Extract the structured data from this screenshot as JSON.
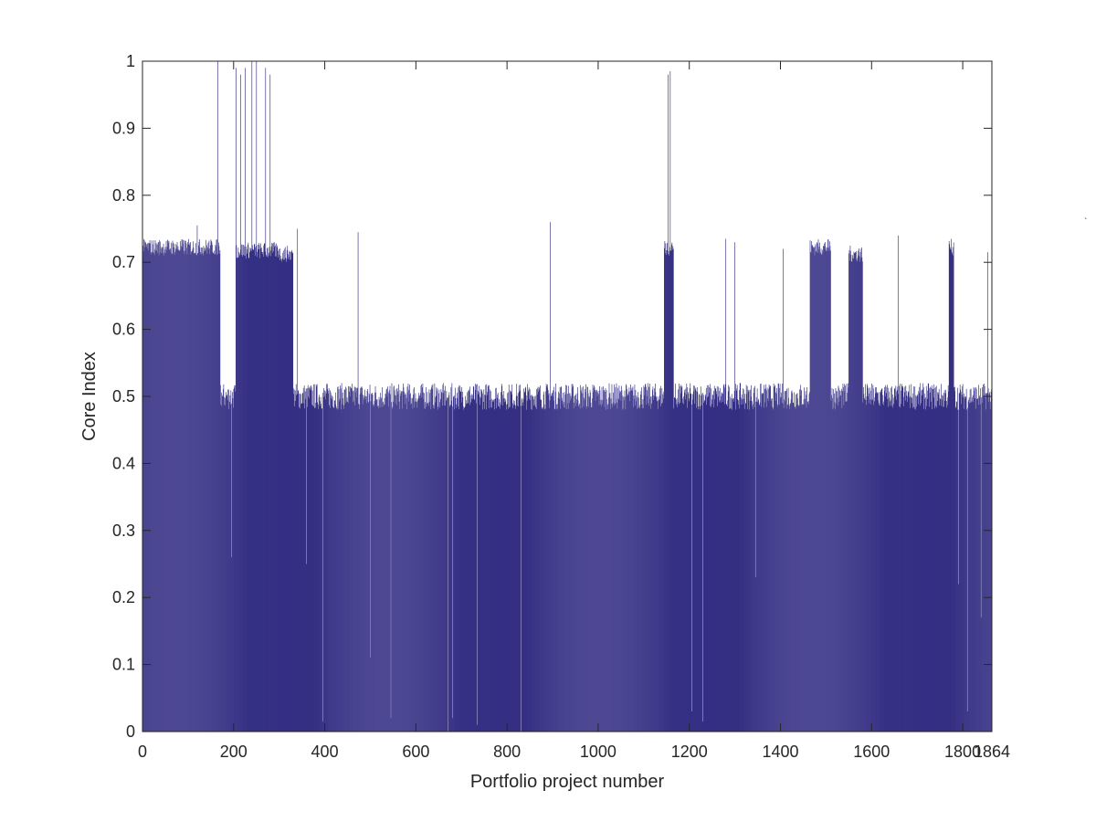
{
  "chart_data": {
    "type": "bar",
    "title": "",
    "xlabel": "Portfolio project number",
    "ylabel": "Core Index",
    "xlim": [
      0,
      1864
    ],
    "ylim": [
      0,
      1
    ],
    "x_ticks": [
      0,
      200,
      400,
      600,
      800,
      1000,
      1200,
      1400,
      1600,
      1800,
      1864
    ],
    "x_tick_labels": [
      "0",
      "200",
      "400",
      "600",
      "800",
      "1000",
      "1200",
      "1400",
      "1600",
      "1800",
      "1864"
    ],
    "y_ticks": [
      0,
      0.1,
      0.2,
      0.3,
      0.4,
      0.5,
      0.6,
      0.7,
      0.8,
      0.9,
      1
    ],
    "y_tick_labels": [
      "0",
      "0.1",
      "0.2",
      "0.3",
      "0.4",
      "0.5",
      "0.6",
      "0.7",
      "0.8",
      "0.9",
      "1"
    ],
    "bar_color": "#353084",
    "grid": false,
    "box": true,
    "n_bars": 1864,
    "baseline": {
      "min": 0.48,
      "max": 0.52
    },
    "elevated_ranges": [
      {
        "from": 1,
        "to": 170,
        "value": 0.72
      },
      {
        "from": 206,
        "to": 300,
        "value": 0.715
      },
      {
        "from": 301,
        "to": 330,
        "value": 0.71
      },
      {
        "from": 1145,
        "to": 1165,
        "value": 0.72
      },
      {
        "from": 1465,
        "to": 1510,
        "value": 0.72
      },
      {
        "from": 1550,
        "to": 1580,
        "value": 0.71
      },
      {
        "from": 1770,
        "to": 1780,
        "value": 0.72
      }
    ],
    "spikes": [
      {
        "x": 165,
        "value": 1.0
      },
      {
        "x": 205,
        "value": 0.99
      },
      {
        "x": 215,
        "value": 0.98
      },
      {
        "x": 225,
        "value": 0.99
      },
      {
        "x": 240,
        "value": 1.0
      },
      {
        "x": 250,
        "value": 1.0
      },
      {
        "x": 270,
        "value": 0.99
      },
      {
        "x": 280,
        "value": 0.98
      },
      {
        "x": 1153,
        "value": 0.98
      },
      {
        "x": 1158,
        "value": 0.985
      },
      {
        "x": 120,
        "value": 0.755
      },
      {
        "x": 340,
        "value": 0.75
      },
      {
        "x": 473,
        "value": 0.745
      },
      {
        "x": 895,
        "value": 0.76
      },
      {
        "x": 1280,
        "value": 0.735
      },
      {
        "x": 1300,
        "value": 0.73
      },
      {
        "x": 1345,
        "value": 0.73
      },
      {
        "x": 1406,
        "value": 0.72
      },
      {
        "x": 1658,
        "value": 0.74
      },
      {
        "x": 1855,
        "value": 0.715
      }
    ],
    "dips": [
      {
        "x": 195,
        "value": 0.26
      },
      {
        "x": 360,
        "value": 0.25
      },
      {
        "x": 395,
        "value": 0.015
      },
      {
        "x": 500,
        "value": 0.11
      },
      {
        "x": 545,
        "value": 0.02
      },
      {
        "x": 670,
        "value": 0.0
      },
      {
        "x": 680,
        "value": 0.02
      },
      {
        "x": 735,
        "value": 0.01
      },
      {
        "x": 830,
        "value": 0.0
      },
      {
        "x": 1205,
        "value": 0.03
      },
      {
        "x": 1230,
        "value": 0.015
      },
      {
        "x": 1345,
        "value": 0.23
      },
      {
        "x": 1790,
        "value": 0.22
      },
      {
        "x": 1810,
        "value": 0.03
      },
      {
        "x": 1840,
        "value": 0.17
      }
    ]
  },
  "stray_mark": "`"
}
